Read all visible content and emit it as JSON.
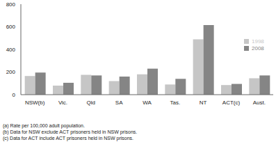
{
  "chart_data": {
    "type": "bar",
    "categories": [
      "NSW(b)",
      "Vic.",
      "Qld",
      "SA",
      "WA",
      "Tas.",
      "NT",
      "ACT(c)",
      "Aust."
    ],
    "series": [
      {
        "name": "1998",
        "color": "#c6c6c6",
        "values": [
          165,
          80,
          175,
          120,
          180,
          90,
          490,
          85,
          145
        ]
      },
      {
        "name": "2008",
        "color": "#858585",
        "values": [
          195,
          105,
          170,
          160,
          230,
          140,
          615,
          95,
          170
        ]
      }
    ],
    "ylim": [
      0,
      800
    ],
    "yticks": [
      0,
      200,
      400,
      600,
      800
    ],
    "grid": false,
    "legend": "right",
    "annotations": [
      "(a) Rate per 100,000 adult population.",
      "(b) Data for NSW exclude ACT prisoners held in NSW prisons.",
      "(c) Data for ACT include ACT prisoners held in NSW prisons."
    ]
  }
}
